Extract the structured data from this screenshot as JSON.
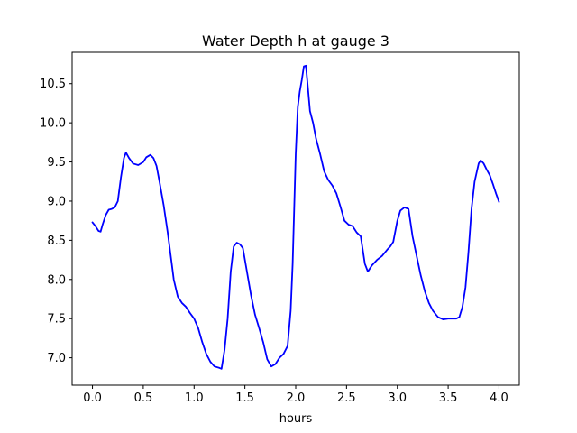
{
  "chart_data": {
    "type": "line",
    "title": "Water Depth h at gauge 3",
    "xlabel": "hours",
    "ylabel": "",
    "xlim": [
      -0.2,
      4.2
    ],
    "ylim": [
      6.65,
      10.9
    ],
    "grid": false,
    "legend": "none",
    "x_ticks": [
      0.0,
      0.5,
      1.0,
      1.5,
      2.0,
      2.5,
      3.0,
      3.5,
      4.0
    ],
    "x_tick_labels": [
      "0.0",
      "0.5",
      "1.0",
      "1.5",
      "2.0",
      "2.5",
      "3.0",
      "3.5",
      "4.0"
    ],
    "y_ticks": [
      7.0,
      7.5,
      8.0,
      8.5,
      9.0,
      9.5,
      10.0,
      10.5
    ],
    "y_tick_labels": [
      "7.0",
      "7.5",
      "8.0",
      "8.5",
      "9.0",
      "9.5",
      "10.0",
      "10.5"
    ],
    "series": [
      {
        "color": "#0000ff",
        "x": [
          0.0,
          0.03,
          0.06,
          0.08,
          0.1,
          0.13,
          0.16,
          0.19,
          0.22,
          0.25,
          0.28,
          0.31,
          0.33,
          0.36,
          0.4,
          0.45,
          0.5,
          0.53,
          0.57,
          0.6,
          0.63,
          0.66,
          0.7,
          0.74,
          0.78,
          0.8,
          0.84,
          0.88,
          0.92,
          0.96,
          1.0,
          1.04,
          1.08,
          1.12,
          1.16,
          1.2,
          1.25,
          1.27,
          1.3,
          1.33,
          1.36,
          1.39,
          1.42,
          1.45,
          1.48,
          1.52,
          1.56,
          1.6,
          1.64,
          1.68,
          1.72,
          1.76,
          1.8,
          1.84,
          1.88,
          1.92,
          1.95,
          1.97,
          2.0,
          2.02,
          2.04,
          2.06,
          2.08,
          2.1,
          2.12,
          2.14,
          2.17,
          2.2,
          2.24,
          2.28,
          2.32,
          2.36,
          2.4,
          2.44,
          2.48,
          2.52,
          2.56,
          2.6,
          2.64,
          2.68,
          2.71,
          2.75,
          2.8,
          2.85,
          2.9,
          2.93,
          2.96,
          3.0,
          3.03,
          3.07,
          3.11,
          3.15,
          3.19,
          3.23,
          3.27,
          3.31,
          3.35,
          3.4,
          3.45,
          3.5,
          3.55,
          3.58,
          3.61,
          3.64,
          3.67,
          3.7,
          3.73,
          3.76,
          3.8,
          3.82,
          3.85,
          3.88,
          3.91,
          3.94,
          3.97,
          4.0
        ],
        "values": [
          8.73,
          8.68,
          8.62,
          8.61,
          8.7,
          8.82,
          8.89,
          8.9,
          8.92,
          9.0,
          9.3,
          9.55,
          9.62,
          9.55,
          9.48,
          9.46,
          9.5,
          9.56,
          9.59,
          9.55,
          9.45,
          9.25,
          8.95,
          8.6,
          8.2,
          8.0,
          7.78,
          7.7,
          7.65,
          7.57,
          7.5,
          7.38,
          7.2,
          7.05,
          6.95,
          6.89,
          6.87,
          6.86,
          7.1,
          7.5,
          8.1,
          8.42,
          8.47,
          8.45,
          8.4,
          8.1,
          7.8,
          7.55,
          7.38,
          7.2,
          6.98,
          6.89,
          6.92,
          7.0,
          7.05,
          7.15,
          7.6,
          8.2,
          9.6,
          10.2,
          10.4,
          10.55,
          10.72,
          10.73,
          10.45,
          10.15,
          10.0,
          9.8,
          9.6,
          9.38,
          9.27,
          9.2,
          9.1,
          8.93,
          8.75,
          8.7,
          8.68,
          8.6,
          8.55,
          8.2,
          8.1,
          8.18,
          8.25,
          8.3,
          8.38,
          8.42,
          8.48,
          8.75,
          8.88,
          8.92,
          8.9,
          8.55,
          8.3,
          8.05,
          7.85,
          7.7,
          7.6,
          7.52,
          7.49,
          7.5,
          7.5,
          7.5,
          7.52,
          7.65,
          7.9,
          8.35,
          8.9,
          9.25,
          9.48,
          9.52,
          9.48,
          9.4,
          9.33,
          9.22,
          9.1,
          8.99
        ]
      }
    ]
  }
}
